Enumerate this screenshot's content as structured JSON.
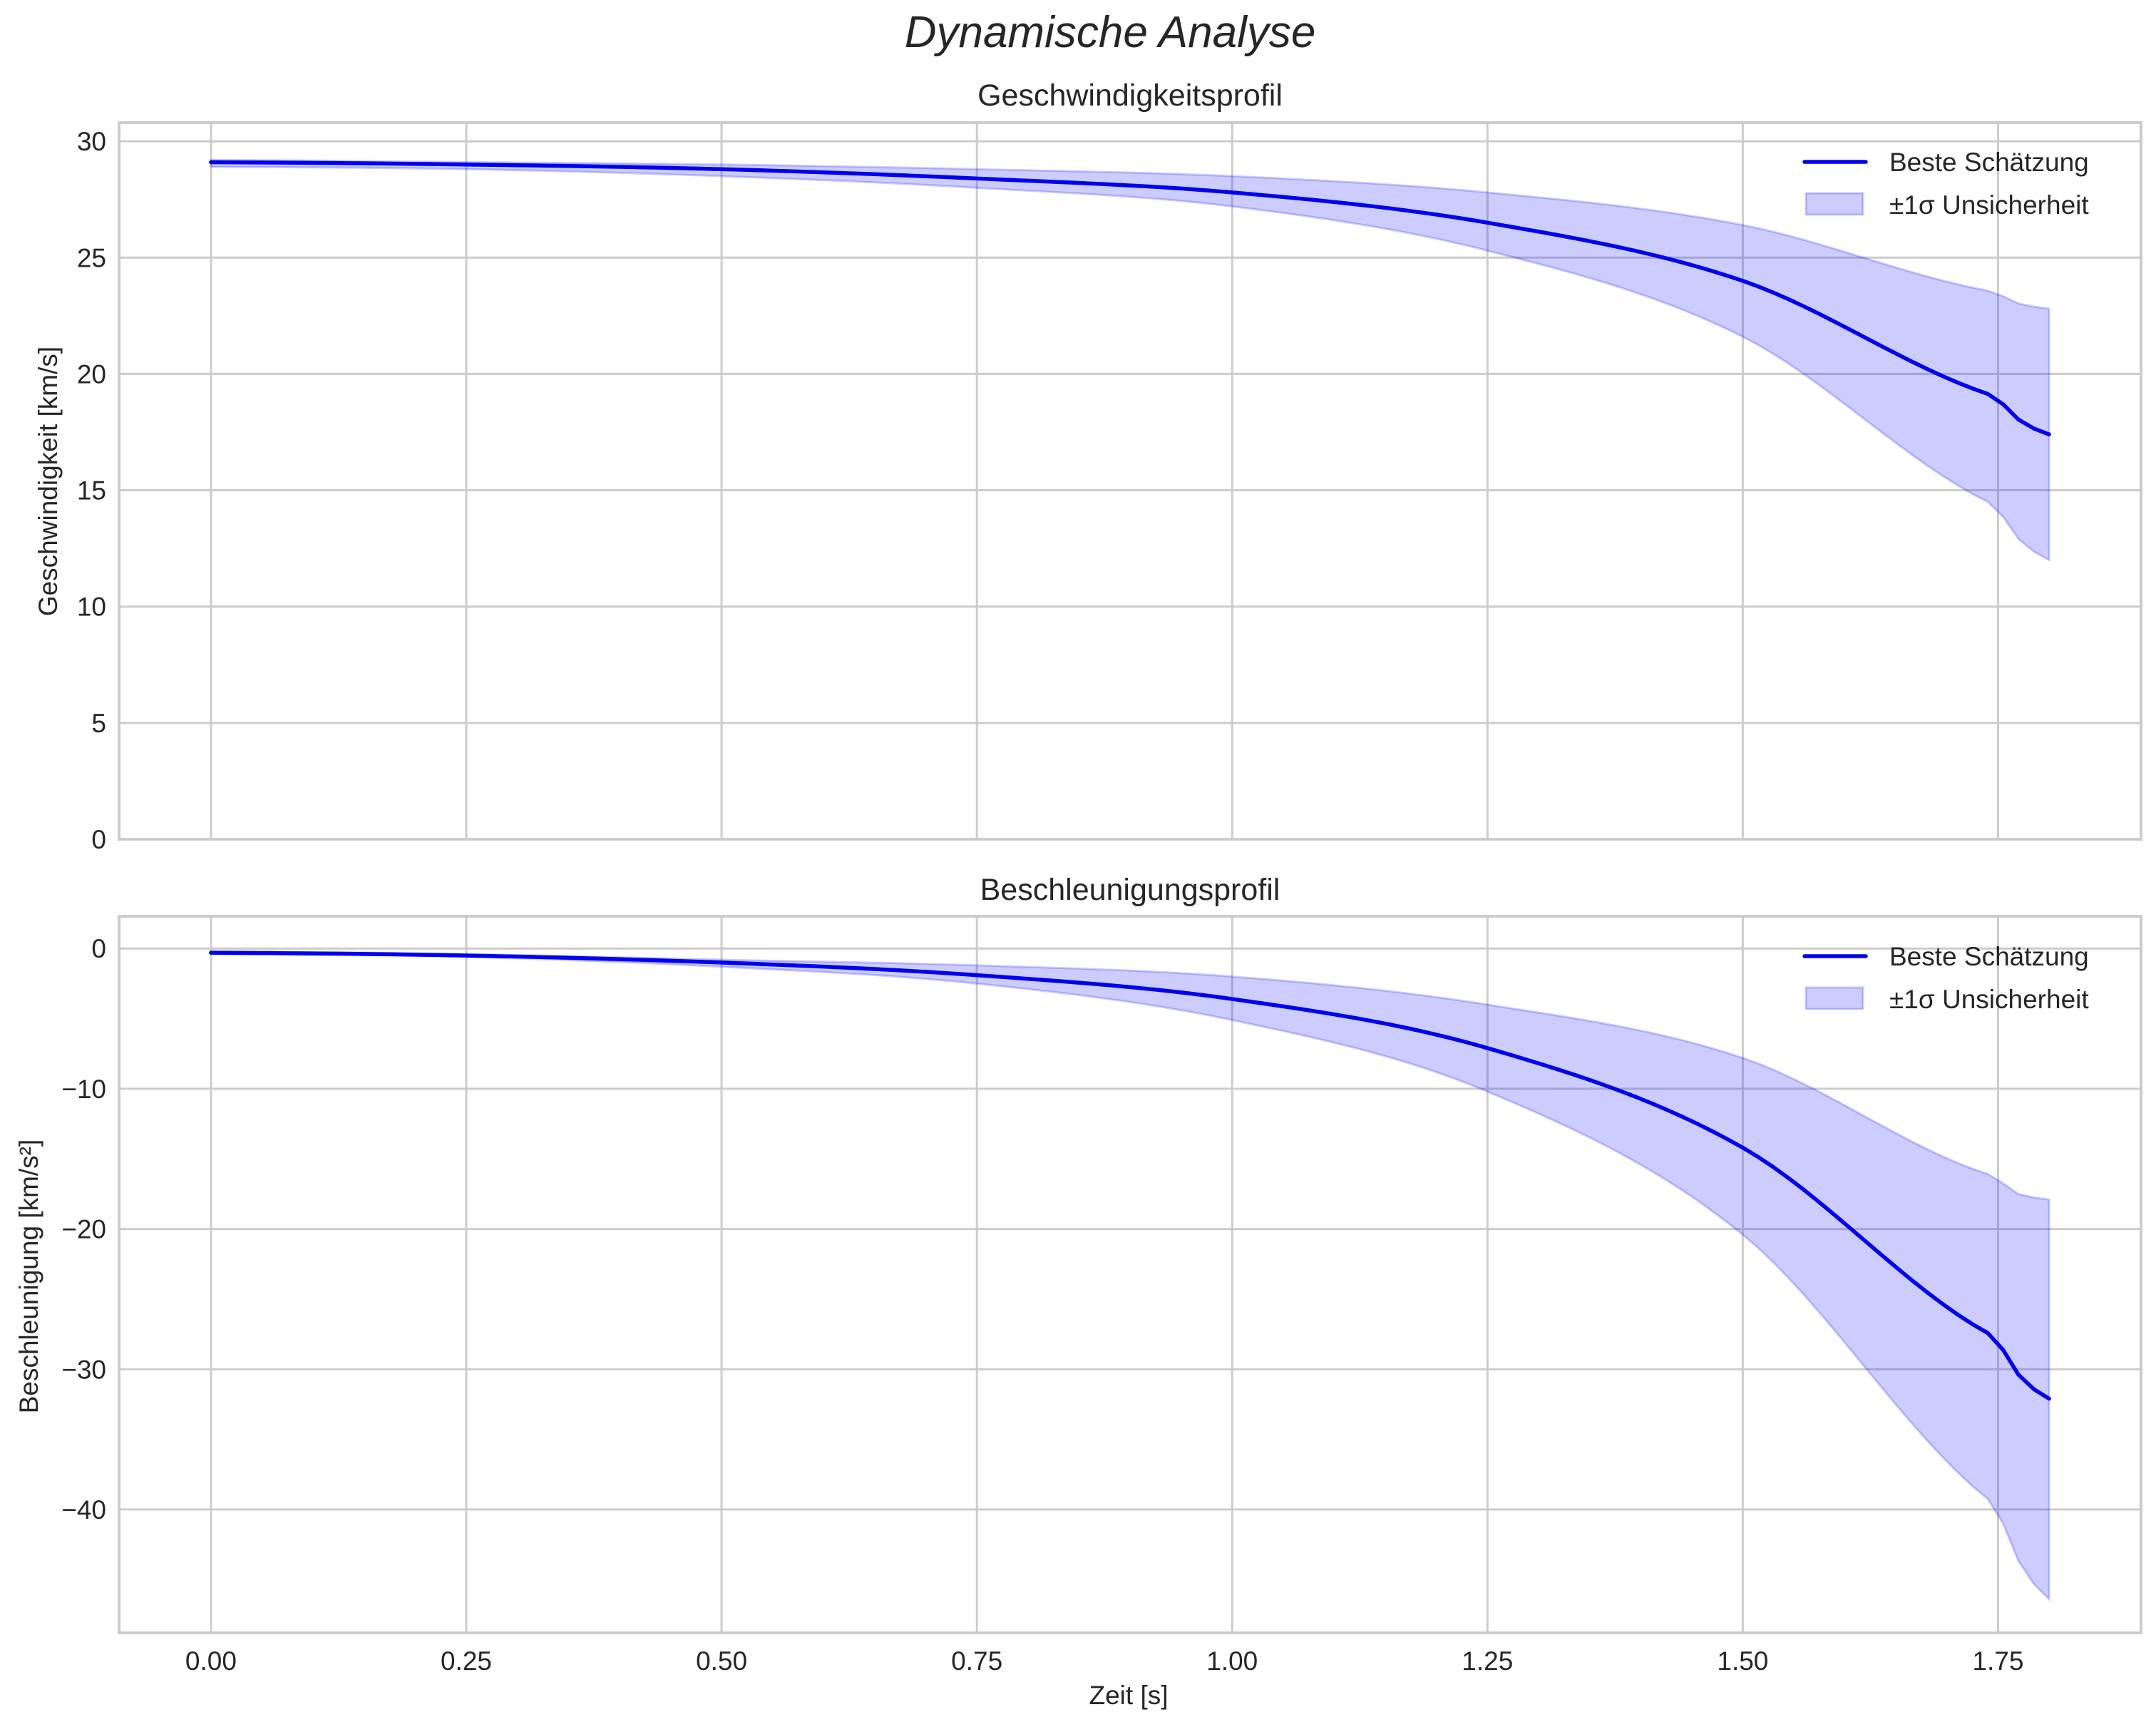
{
  "figure": {
    "suptitle": "Dynamische Analyse",
    "xlabel": "Zeit [s]"
  },
  "colors": {
    "line": "#0000ee",
    "band_fill": "#0000ff",
    "band_alpha": 0.2,
    "grid": "#cccccc",
    "spine": "#cccccc",
    "text": "#262626"
  },
  "legend": {
    "line_label": "Beste Schätzung",
    "band_label": "±1σ Unsicherheit"
  },
  "chart_data": [
    {
      "type": "line",
      "title": "Geschwindigkeitsprofil",
      "xlabel": "",
      "ylabel": "Geschwindigkeit [km/s]",
      "xlim": [
        -0.09,
        1.89
      ],
      "ylim": [
        0,
        30.8
      ],
      "xticks": [
        0.0,
        0.25,
        0.5,
        0.75,
        1.0,
        1.25,
        1.5,
        1.75
      ],
      "xtick_labels": [],
      "yticks": [
        0,
        5,
        10,
        15,
        20,
        25,
        30
      ],
      "ytick_labels": [
        "0",
        "5",
        "10",
        "15",
        "20",
        "25",
        "30"
      ],
      "grid": true,
      "legend_position": "upper right",
      "x": [
        0.0,
        0.25,
        0.5,
        0.75,
        1.0,
        1.25,
        1.5,
        1.75,
        1.8
      ],
      "series": [
        {
          "name": "Beste Schätzung",
          "values": [
            29.1,
            29.0,
            28.8,
            28.4,
            27.8,
            26.5,
            24.0,
            19.0,
            17.4
          ]
        },
        {
          "name": "±1σ Unsicherheit (oben)",
          "values": [
            29.2,
            29.1,
            29.0,
            28.8,
            28.5,
            27.8,
            26.4,
            23.5,
            22.8
          ]
        },
        {
          "name": "±1σ Unsicherheit (unten)",
          "values": [
            28.9,
            28.8,
            28.5,
            28.0,
            27.2,
            25.3,
            21.6,
            14.3,
            12.0
          ]
        }
      ]
    },
    {
      "type": "line",
      "title": "Beschleunigungsprofil",
      "xlabel": "Zeit [s]",
      "ylabel": "Beschleunigung [km/s²]",
      "xlim": [
        -0.09,
        1.89
      ],
      "ylim": [
        -48.8,
        2.3
      ],
      "xticks": [
        0.0,
        0.25,
        0.5,
        0.75,
        1.0,
        1.25,
        1.5,
        1.75
      ],
      "xtick_labels": [
        "0.00",
        "0.25",
        "0.50",
        "0.75",
        "1.00",
        "1.25",
        "1.50",
        "1.75"
      ],
      "yticks": [
        0,
        -10,
        -20,
        -30,
        -40
      ],
      "ytick_labels": [
        "0",
        "−10",
        "−20",
        "−30",
        "−40"
      ],
      "grid": true,
      "legend_position": "upper right",
      "x": [
        0.0,
        0.25,
        0.5,
        0.75,
        1.0,
        1.25,
        1.5,
        1.75,
        1.8
      ],
      "series": [
        {
          "name": "Beste Schätzung",
          "values": [
            -0.3,
            -0.5,
            -1.0,
            -1.9,
            -3.6,
            -7.1,
            -14.2,
            -27.8,
            -32.1
          ]
        },
        {
          "name": "±1σ Unsicherheit (oben)",
          "values": [
            -0.2,
            -0.4,
            -0.8,
            -1.2,
            -2.0,
            -4.0,
            -7.8,
            -16.3,
            -17.9
          ]
        },
        {
          "name": "±1σ Unsicherheit (unten)",
          "values": [
            -0.4,
            -0.6,
            -1.3,
            -2.5,
            -5.1,
            -10.2,
            -20.4,
            -39.8,
            -46.4
          ]
        }
      ]
    }
  ]
}
